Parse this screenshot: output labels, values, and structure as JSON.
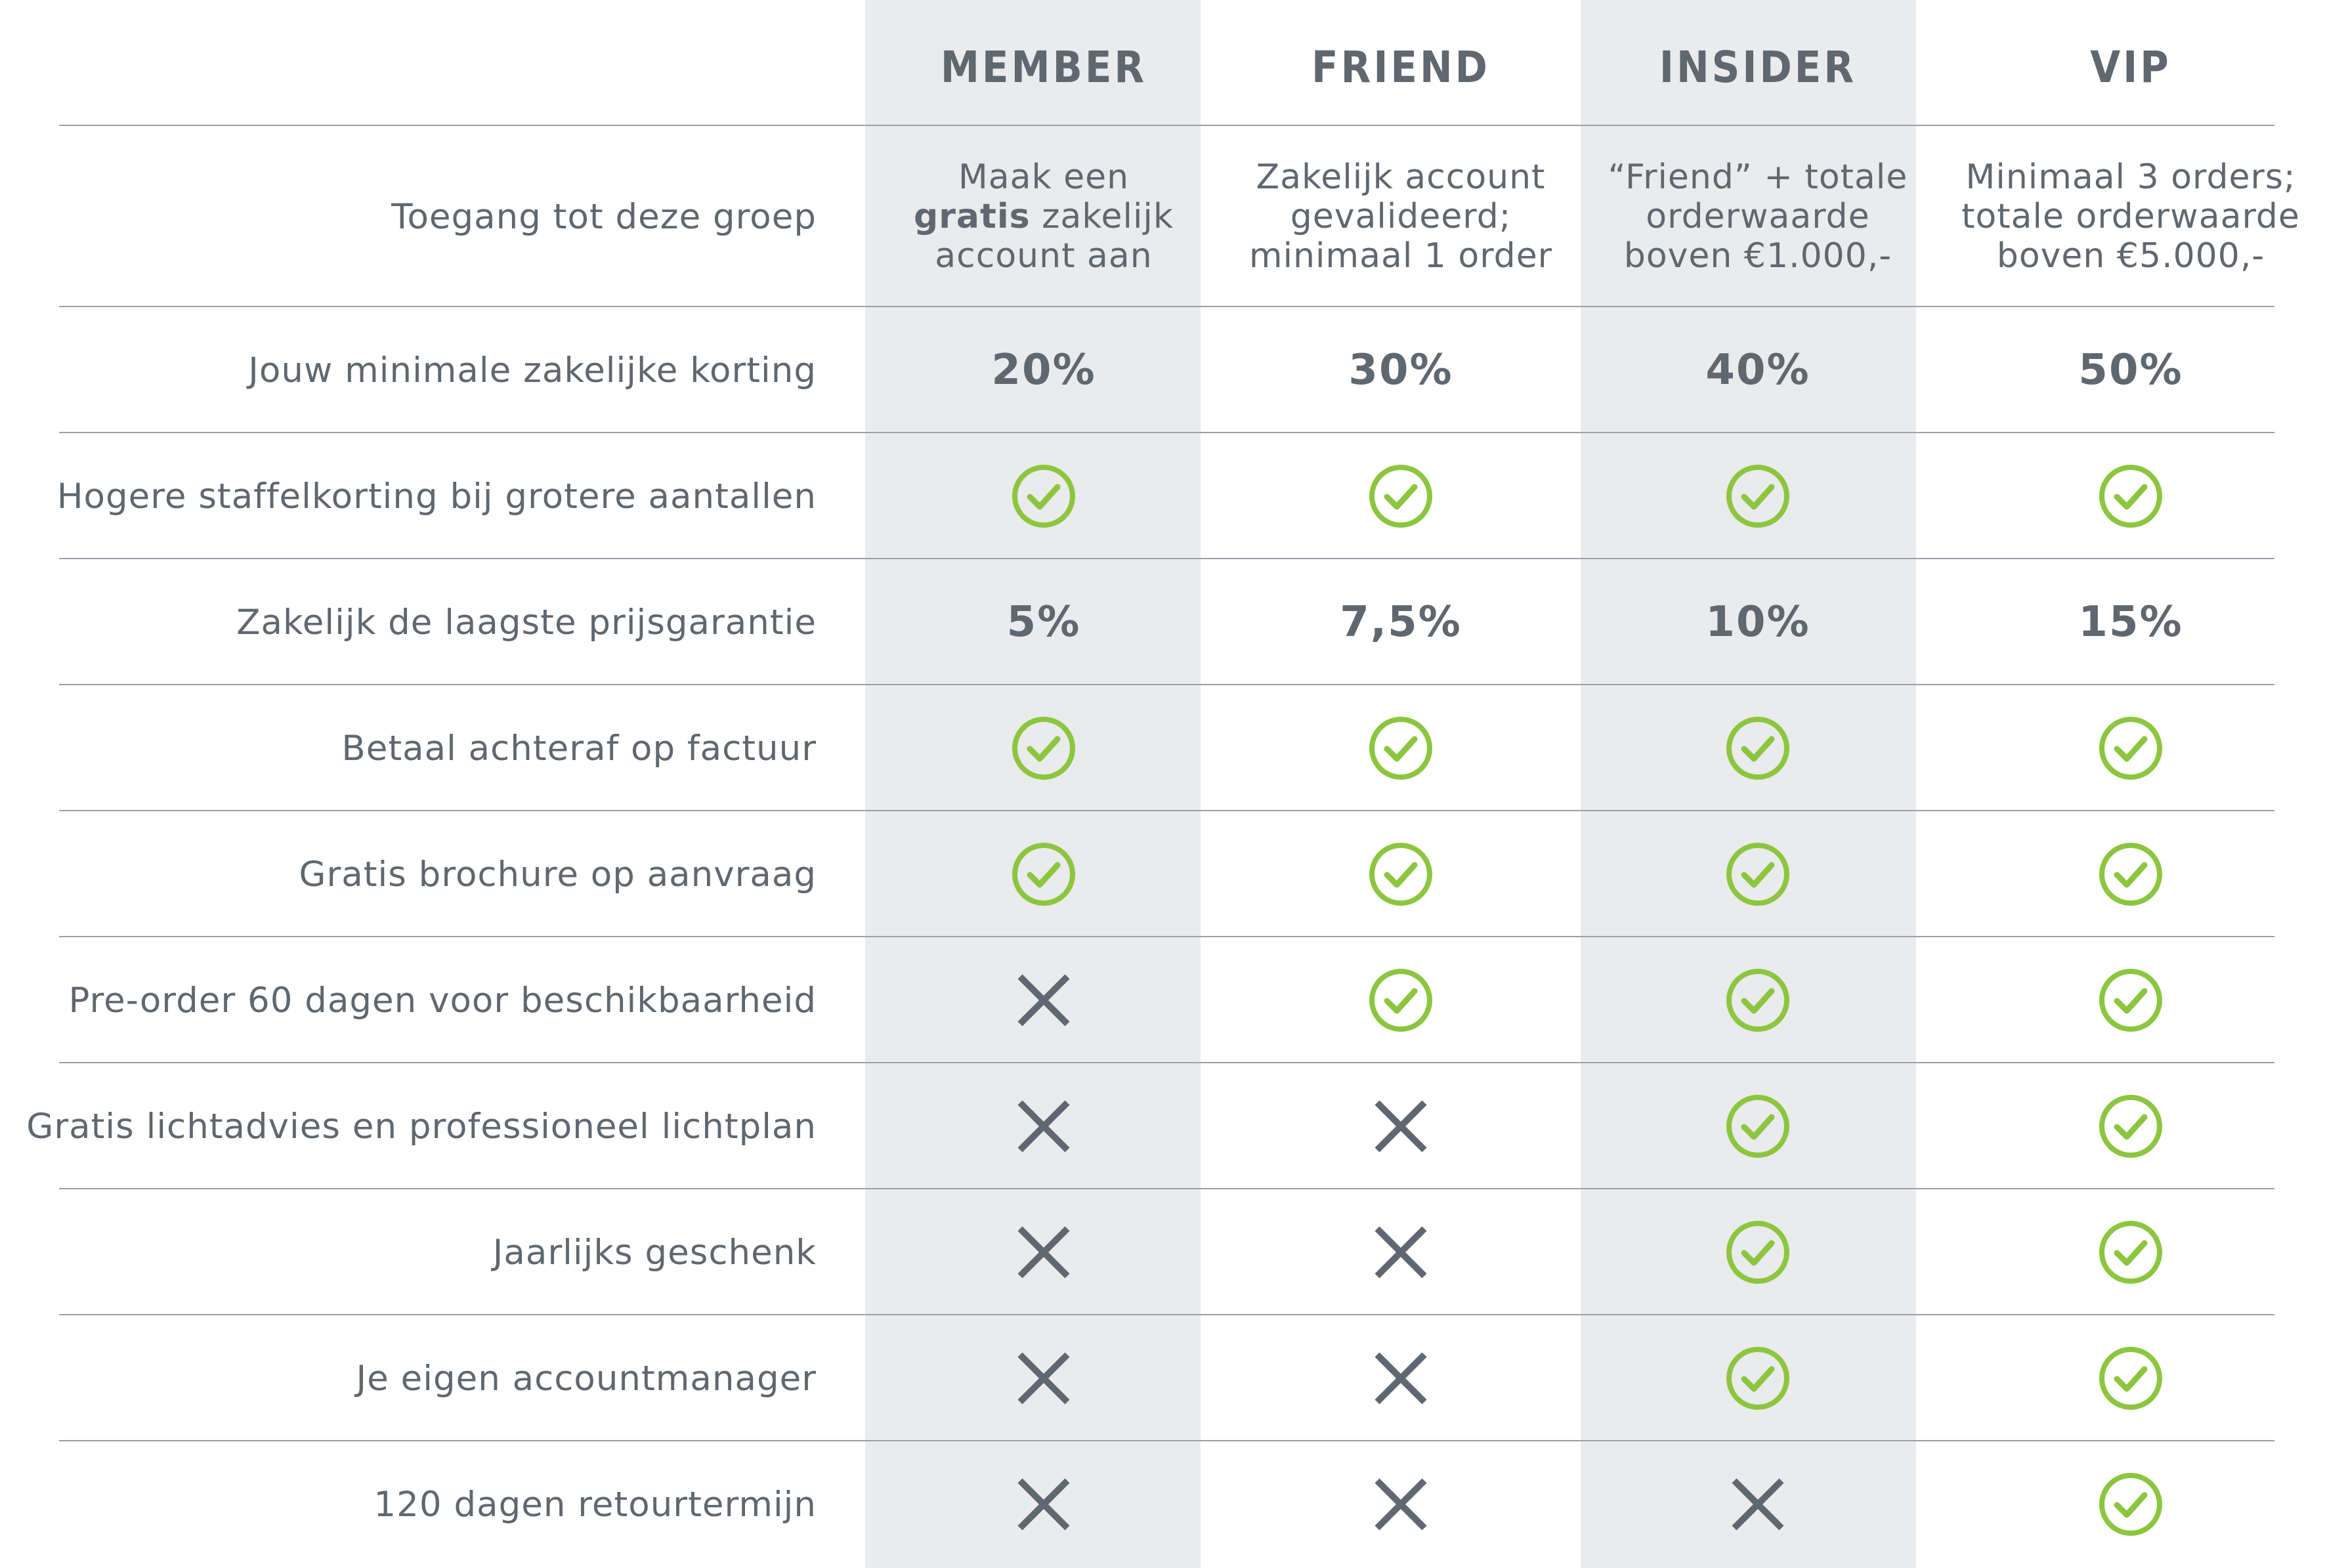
{
  "columns": [
    "MEMBER",
    "FRIEND",
    "INSIDER",
    "VIP"
  ],
  "access_row": {
    "label": "Toegang tot deze groep",
    "member": {
      "before": "Maak een",
      "bold": "gratis",
      "after": "zakelijk",
      "line3": "account aan"
    },
    "friend": [
      "Zakelijk account",
      "gevalideerd;",
      "minimaal 1 order"
    ],
    "insider": [
      "“Friend” + totale",
      "orderwaarde",
      "boven €1.000,-"
    ],
    "vip": [
      "Minimaal 3 orders;",
      "totale orderwaarde",
      "boven €5.000,-"
    ]
  },
  "rows": [
    {
      "label": "Jouw minimale zakelijke korting",
      "type": "text",
      "values": [
        "20%",
        "30%",
        "40%",
        "50%"
      ]
    },
    {
      "label": "Hogere staffelkorting bij grotere aantallen",
      "type": "icon",
      "values": [
        "check",
        "check",
        "check",
        "check"
      ]
    },
    {
      "label": "Zakelijk de laagste prijsgarantie",
      "type": "text",
      "values": [
        "5%",
        "7,5%",
        "10%",
        "15%"
      ]
    },
    {
      "label": "Betaal achteraf op factuur",
      "type": "icon",
      "values": [
        "check",
        "check",
        "check",
        "check"
      ]
    },
    {
      "label": "Gratis brochure op aanvraag",
      "type": "icon",
      "values": [
        "check",
        "check",
        "check",
        "check"
      ]
    },
    {
      "label": "Pre-order 60 dagen voor beschikbaarheid",
      "type": "icon",
      "values": [
        "cross",
        "check",
        "check",
        "check"
      ]
    },
    {
      "label": "Gratis lichtadvies en professioneel lichtplan",
      "type": "icon",
      "values": [
        "cross",
        "cross",
        "check",
        "check"
      ]
    },
    {
      "label": "Jaarlijks geschenk",
      "type": "icon",
      "values": [
        "cross",
        "cross",
        "check",
        "check"
      ]
    },
    {
      "label": "Je eigen accountmanager",
      "type": "icon",
      "values": [
        "cross",
        "cross",
        "check",
        "check"
      ]
    },
    {
      "label": "120 dagen retourtermijn",
      "type": "icon",
      "values": [
        "cross",
        "cross",
        "cross",
        "check"
      ]
    }
  ],
  "colors": {
    "text": "#5f6770",
    "check": "#8cc63f",
    "cross": "#5f6770",
    "shade": "#eaebec",
    "rule": "#9aa0a6"
  }
}
